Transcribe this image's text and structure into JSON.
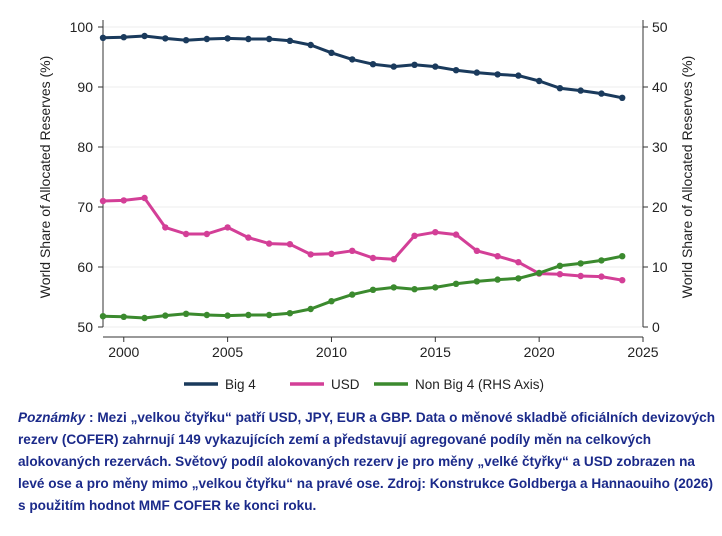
{
  "chart_data": {
    "type": "line",
    "x": [
      1999,
      2000,
      2001,
      2002,
      2003,
      2004,
      2005,
      2006,
      2007,
      2008,
      2009,
      2010,
      2011,
      2012,
      2013,
      2014,
      2015,
      2016,
      2017,
      2018,
      2019,
      2020,
      2021,
      2022,
      2023,
      2024
    ],
    "series": [
      {
        "name": "Big 4",
        "axis": "left",
        "color": "#1a3a5c",
        "values": [
          98.2,
          98.3,
          98.5,
          98.1,
          97.8,
          98.0,
          98.1,
          98.0,
          98.0,
          97.7,
          97.0,
          95.7,
          94.6,
          93.8,
          93.4,
          93.7,
          93.4,
          92.8,
          92.4,
          92.1,
          91.9,
          91.0,
          89.8,
          89.4,
          88.9,
          88.2
        ]
      },
      {
        "name": "USD",
        "axis": "left",
        "color": "#d33f97",
        "values": [
          71.0,
          71.1,
          71.5,
          66.6,
          65.5,
          65.5,
          66.6,
          64.9,
          63.9,
          63.8,
          62.1,
          62.2,
          62.7,
          61.5,
          61.3,
          65.2,
          65.8,
          65.4,
          62.7,
          61.8,
          60.8,
          58.9,
          58.8,
          58.5,
          58.4,
          57.8
        ]
      },
      {
        "name": "Non Big 4 (RHS Axis)",
        "axis": "right",
        "color": "#3b8a2e",
        "values": [
          1.8,
          1.7,
          1.5,
          1.9,
          2.2,
          2.0,
          1.9,
          2.0,
          2.0,
          2.3,
          3.0,
          4.3,
          5.4,
          6.2,
          6.6,
          6.3,
          6.6,
          7.2,
          7.6,
          7.9,
          8.1,
          9.0,
          10.2,
          10.6,
          11.1,
          11.8
        ]
      }
    ],
    "xlim": [
      1999,
      2025
    ],
    "xticks": [
      2000,
      2005,
      2010,
      2015,
      2020,
      2025
    ],
    "ylim_left": [
      50,
      100
    ],
    "yticks_left": [
      50,
      60,
      70,
      80,
      90,
      100
    ],
    "ylim_right": [
      0,
      50
    ],
    "yticks_right": [
      0,
      10,
      20,
      30,
      40,
      50
    ],
    "ylabel_left": "World Share of Allocated Reserves (%)",
    "ylabel_right": "World Share of Allocated Reserves (%)",
    "xlabel": "",
    "grid": "horizontal",
    "legend": "bottom"
  },
  "note": {
    "label": "Poznámky",
    "text": " : Mezi „velkou čtyřku“ patří USD, JPY, EUR a GBP. Data o měnové skladbě oficiálních devizových rezerv (COFER) zahrnují 149 vykazujících zemí a představují agregované podíly měn na celkových alokovaných rezervách. Světový podíl alokovaných rezerv je pro měny „velké čtyřky“ a USD zobrazen na levé ose a pro měny mimo „velkou čtyřku“ na pravé ose. Zdroj: Konstrukce Goldberga a Hannaouiho (2026) s použitím hodnot MMF COFER ke konci roku."
  }
}
